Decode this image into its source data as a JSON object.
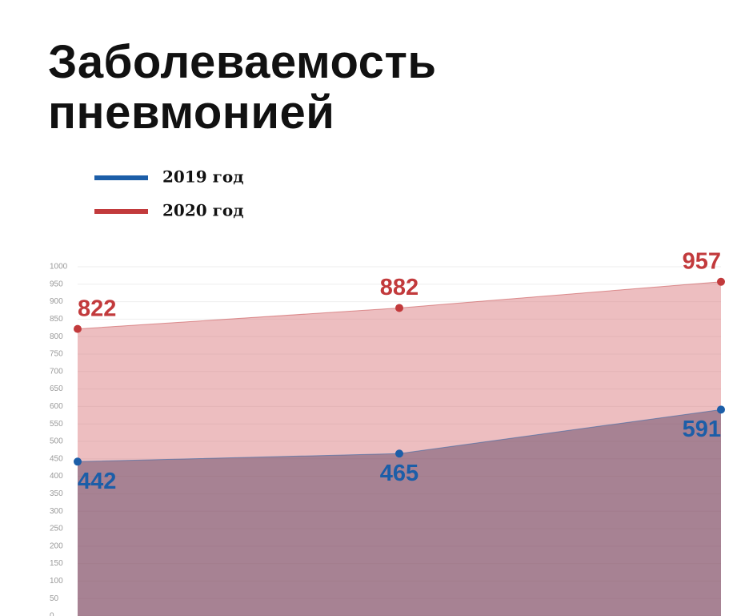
{
  "chart_data": {
    "type": "area",
    "title": "Заболеваемость пневмонией",
    "categories": [
      null,
      null,
      null
    ],
    "series": [
      {
        "name": "2019 год",
        "color": "#1c5ea8",
        "values": [
          442,
          465,
          591
        ]
      },
      {
        "name": "2020 год",
        "color": "#c23a3c",
        "values": [
          822,
          882,
          957
        ]
      }
    ],
    "ylim": [
      0,
      1000
    ],
    "yticks": [
      0,
      50,
      100,
      150,
      200,
      250,
      300,
      350,
      400,
      450,
      500,
      550,
      600,
      650,
      700,
      750,
      800,
      850,
      900,
      950,
      1000
    ],
    "grid": true,
    "legend": "top-left"
  }
}
